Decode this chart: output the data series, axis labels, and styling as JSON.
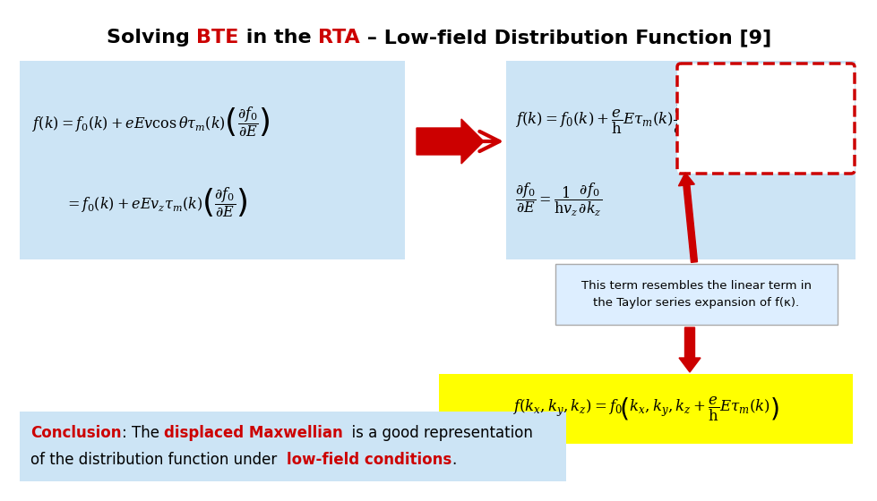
{
  "bg_color": "#ffffff",
  "light_blue": "#cce4f5",
  "yellow": "#ffff00",
  "red_color": "#cc0000",
  "annot_box_color": "#ddeeff",
  "title_pieces": [
    [
      "Solving ",
      "#000000"
    ],
    [
      "BTE",
      "#cc0000"
    ],
    [
      " in the ",
      "#000000"
    ],
    [
      "RTA",
      "#cc0000"
    ],
    [
      " – Low-field Distribution Function [9]",
      "#000000"
    ]
  ],
  "eq1": "$f(k) = f_0(k) + eEv\\cos\\theta\\tau_m(k)\\left(\\dfrac{\\partial f_0}{\\partial E}\\right)$",
  "eq2": "$= f_0(k) + eEv_z\\tau_m(k)\\left(\\dfrac{\\partial f_0}{\\partial E}\\right)$",
  "eq3": "$f(k) = f_0(k) + \\dfrac{e}{\\mathrm{h}}E\\tau_m(k)\\dfrac{\\partial f_0}{\\partial k_z}$",
  "eq4": "$\\dfrac{\\partial f_0}{\\partial E} = \\dfrac{1}{\\mathrm{h}v_z}\\dfrac{\\partial f_0}{\\partial k_z}$",
  "eq5": "$f(k_x,k_y,k_z) = f_0\\!\\left(k_x,k_y,k_z + \\dfrac{e}{\\mathrm{h}}E\\tau_m(k)\\right)$",
  "annot_text": "This term resembles the linear term in\nthe Taylor series expansion of f(k).",
  "concl_underline": "Conclusion",
  "concl_p1": ": The ",
  "concl_red1": "displaced Maxwellian",
  "concl_p2": " is a good representation",
  "concl_p3": "of the distribution function under ",
  "concl_red2": "low-field conditions",
  "concl_p4": "."
}
